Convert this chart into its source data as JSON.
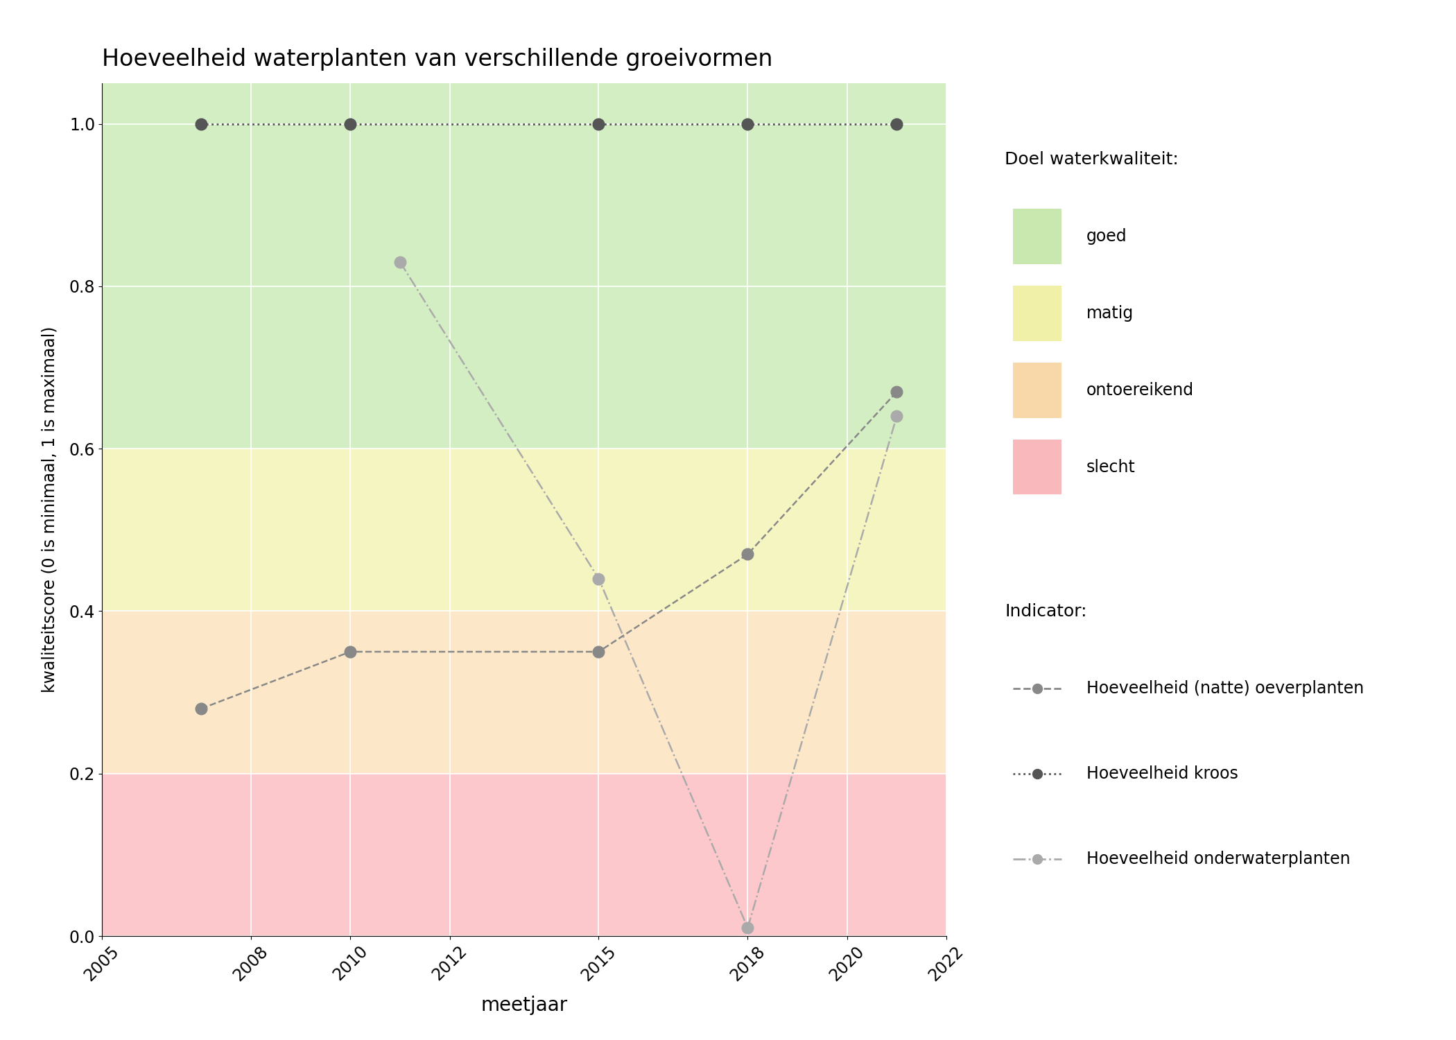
{
  "title": "Hoeveelheid waterplanten van verschillende groeivormen",
  "xlabel": "meetjaar",
  "ylabel": "kwaliteitscore (0 is minimaal, 1 is maximaal)",
  "xlim": [
    2005,
    2022
  ],
  "ylim": [
    0.0,
    1.05
  ],
  "xticks": [
    2005,
    2008,
    2010,
    2012,
    2015,
    2018,
    2020,
    2022
  ],
  "yticks": [
    0.0,
    0.2,
    0.4,
    0.6,
    0.8,
    1.0
  ],
  "background_color": "#ffffff",
  "bg_bands": [
    {
      "ymin": 0.6,
      "ymax": 1.05,
      "color": "#d4eec4"
    },
    {
      "ymin": 0.4,
      "ymax": 0.6,
      "color": "#f5f5c2"
    },
    {
      "ymin": 0.2,
      "ymax": 0.4,
      "color": "#fce8c8"
    },
    {
      "ymin": 0.0,
      "ymax": 0.2,
      "color": "#fcc8cc"
    }
  ],
  "series": [
    {
      "name": "Hoeveelheid (natte) oeverplanten",
      "x": [
        2007,
        2010,
        2015,
        2018,
        2021
      ],
      "y": [
        0.28,
        0.35,
        0.35,
        0.47,
        0.67
      ],
      "color": "#888888",
      "linestyle": "dashed",
      "linewidth": 1.8,
      "markersize": 12,
      "zorder": 4
    },
    {
      "name": "Hoeveelheid kroos",
      "x": [
        2007,
        2010,
        2015,
        2018,
        2021
      ],
      "y": [
        1.0,
        1.0,
        1.0,
        1.0,
        1.0
      ],
      "color": "#555555",
      "linestyle": "dotted",
      "linewidth": 2.0,
      "markersize": 12,
      "zorder": 5
    },
    {
      "name": "Hoeveelheid onderwaterplanten",
      "x": [
        2011,
        2015,
        2018,
        2021
      ],
      "y": [
        0.83,
        0.44,
        0.01,
        0.64
      ],
      "color": "#aaaaaa",
      "linestyle": "dashdot",
      "linewidth": 1.8,
      "markersize": 12,
      "zorder": 3
    }
  ],
  "legend_patch_colors": {
    "goed": "#c8e8b0",
    "matig": "#f0f0a8",
    "ontoereikend": "#f8d8a8",
    "slecht": "#f8b8bc"
  },
  "legend_doel_labels": [
    "goed",
    "matig",
    "ontoereikend",
    "slecht"
  ],
  "legend_title_doel": "Doel waterkwaliteit:",
  "legend_title_indicator": "Indicator:"
}
